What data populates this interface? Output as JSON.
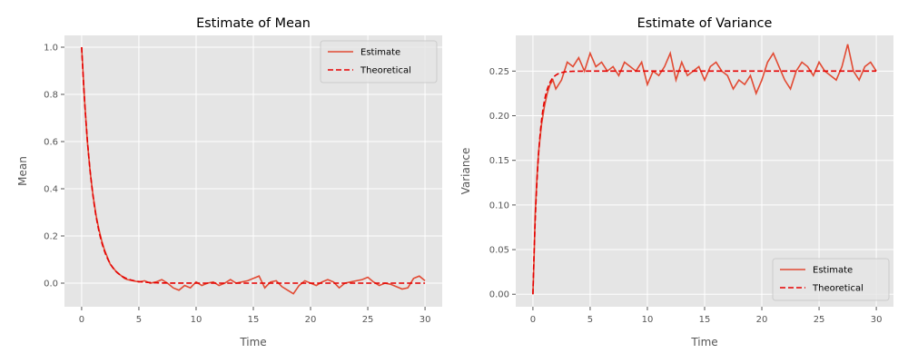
{
  "chart_data": [
    {
      "type": "line",
      "title": "Estimate of Mean",
      "xlabel": "Time",
      "ylabel": "Mean",
      "xlim": [
        -1.5,
        31.5
      ],
      "ylim": [
        -0.1,
        1.05
      ],
      "xticks": [
        0,
        5,
        10,
        15,
        20,
        25,
        30
      ],
      "yticks": [
        0.0,
        0.2,
        0.4,
        0.6,
        0.8,
        1.0
      ],
      "ytick_labels": [
        "0.0",
        "0.2",
        "0.4",
        "0.6",
        "0.8",
        "1.0"
      ],
      "grid": true,
      "legend_position": "top-right",
      "series": [
        {
          "name": "Estimate",
          "style": "solid",
          "color": "#E24A33",
          "x": [
            0,
            0.25,
            0.5,
            0.75,
            1,
            1.25,
            1.5,
            1.75,
            2,
            2.25,
            2.5,
            2.75,
            3,
            3.25,
            3.5,
            3.75,
            4,
            4.5,
            5,
            5.5,
            6,
            6.5,
            7,
            7.5,
            8,
            8.5,
            9,
            9.5,
            10,
            10.5,
            11,
            11.5,
            12,
            12.5,
            13,
            13.5,
            14,
            14.5,
            15,
            15.5,
            16,
            16.5,
            17,
            17.5,
            18,
            18.5,
            19,
            19.5,
            20,
            20.5,
            21,
            21.5,
            22,
            22.5,
            23,
            23.5,
            24,
            24.5,
            25,
            25.5,
            26,
            26.5,
            27,
            27.5,
            28,
            28.5,
            29,
            29.5,
            30
          ],
          "y": [
            1.0,
            0.78,
            0.6,
            0.47,
            0.37,
            0.29,
            0.23,
            0.18,
            0.14,
            0.11,
            0.08,
            0.065,
            0.05,
            0.04,
            0.03,
            0.02,
            0.015,
            0.01,
            0.005,
            0.01,
            0.0,
            0.005,
            0.015,
            0.0,
            -0.02,
            -0.03,
            -0.01,
            -0.02,
            0.005,
            -0.01,
            0.0,
            0.005,
            -0.01,
            0.0,
            0.015,
            0.0,
            0.005,
            0.01,
            0.02,
            0.03,
            -0.02,
            0.005,
            0.01,
            -0.015,
            -0.03,
            -0.045,
            -0.01,
            0.01,
            0.0,
            -0.01,
            0.005,
            0.015,
            0.005,
            -0.02,
            0.0,
            0.005,
            0.01,
            0.015,
            0.025,
            0.005,
            -0.01,
            0.0,
            -0.005,
            -0.015,
            -0.025,
            -0.02,
            0.02,
            0.03,
            0.01
          ]
        },
        {
          "name": "Theoretical",
          "style": "dashed",
          "color": "#E60000",
          "formula": "exp(-t)"
        }
      ]
    },
    {
      "type": "line",
      "title": "Estimate of Variance",
      "xlabel": "Time",
      "ylabel": "Variance",
      "xlim": [
        -1.5,
        31.5
      ],
      "ylim": [
        -0.014,
        0.29
      ],
      "xticks": [
        0,
        5,
        10,
        15,
        20,
        25,
        30
      ],
      "yticks": [
        0.0,
        0.05,
        0.1,
        0.15,
        0.2,
        0.25
      ],
      "ytick_labels": [
        "0.00",
        "0.05",
        "0.10",
        "0.15",
        "0.20",
        "0.25"
      ],
      "grid": true,
      "legend_position": "bottom-right",
      "series": [
        {
          "name": "Estimate",
          "style": "solid",
          "color": "#E24A33",
          "x": [
            0,
            0.1,
            0.2,
            0.35,
            0.5,
            0.75,
            1,
            1.25,
            1.5,
            1.75,
            2,
            2.5,
            3,
            3.5,
            4,
            4.5,
            5,
            5.5,
            6,
            6.5,
            7,
            7.5,
            8,
            8.5,
            9,
            9.5,
            10,
            10.5,
            11,
            11.5,
            12,
            12.5,
            13,
            13.5,
            14,
            14.5,
            15,
            15.5,
            16,
            16.5,
            17,
            17.5,
            18,
            18.5,
            19,
            19.5,
            20,
            20.5,
            21,
            21.5,
            22,
            22.5,
            23,
            23.5,
            24,
            24.5,
            25,
            25.5,
            26,
            26.5,
            27,
            27.5,
            28,
            28.5,
            29,
            29.5,
            30
          ],
          "y": [
            0.0,
            0.04,
            0.09,
            0.13,
            0.16,
            0.19,
            0.21,
            0.225,
            0.235,
            0.24,
            0.23,
            0.24,
            0.26,
            0.255,
            0.265,
            0.25,
            0.27,
            0.255,
            0.26,
            0.25,
            0.255,
            0.245,
            0.26,
            0.255,
            0.25,
            0.26,
            0.235,
            0.25,
            0.245,
            0.255,
            0.27,
            0.24,
            0.26,
            0.245,
            0.25,
            0.255,
            0.24,
            0.255,
            0.26,
            0.25,
            0.245,
            0.23,
            0.24,
            0.235,
            0.245,
            0.225,
            0.24,
            0.26,
            0.27,
            0.255,
            0.24,
            0.23,
            0.25,
            0.26,
            0.255,
            0.245,
            0.26,
            0.25,
            0.245,
            0.24,
            0.255,
            0.28,
            0.25,
            0.24,
            0.255,
            0.26,
            0.25
          ]
        },
        {
          "name": "Theoretical",
          "style": "dashed",
          "color": "#E60000",
          "formula": "0.25*(1-exp(-2t))"
        }
      ]
    }
  ]
}
